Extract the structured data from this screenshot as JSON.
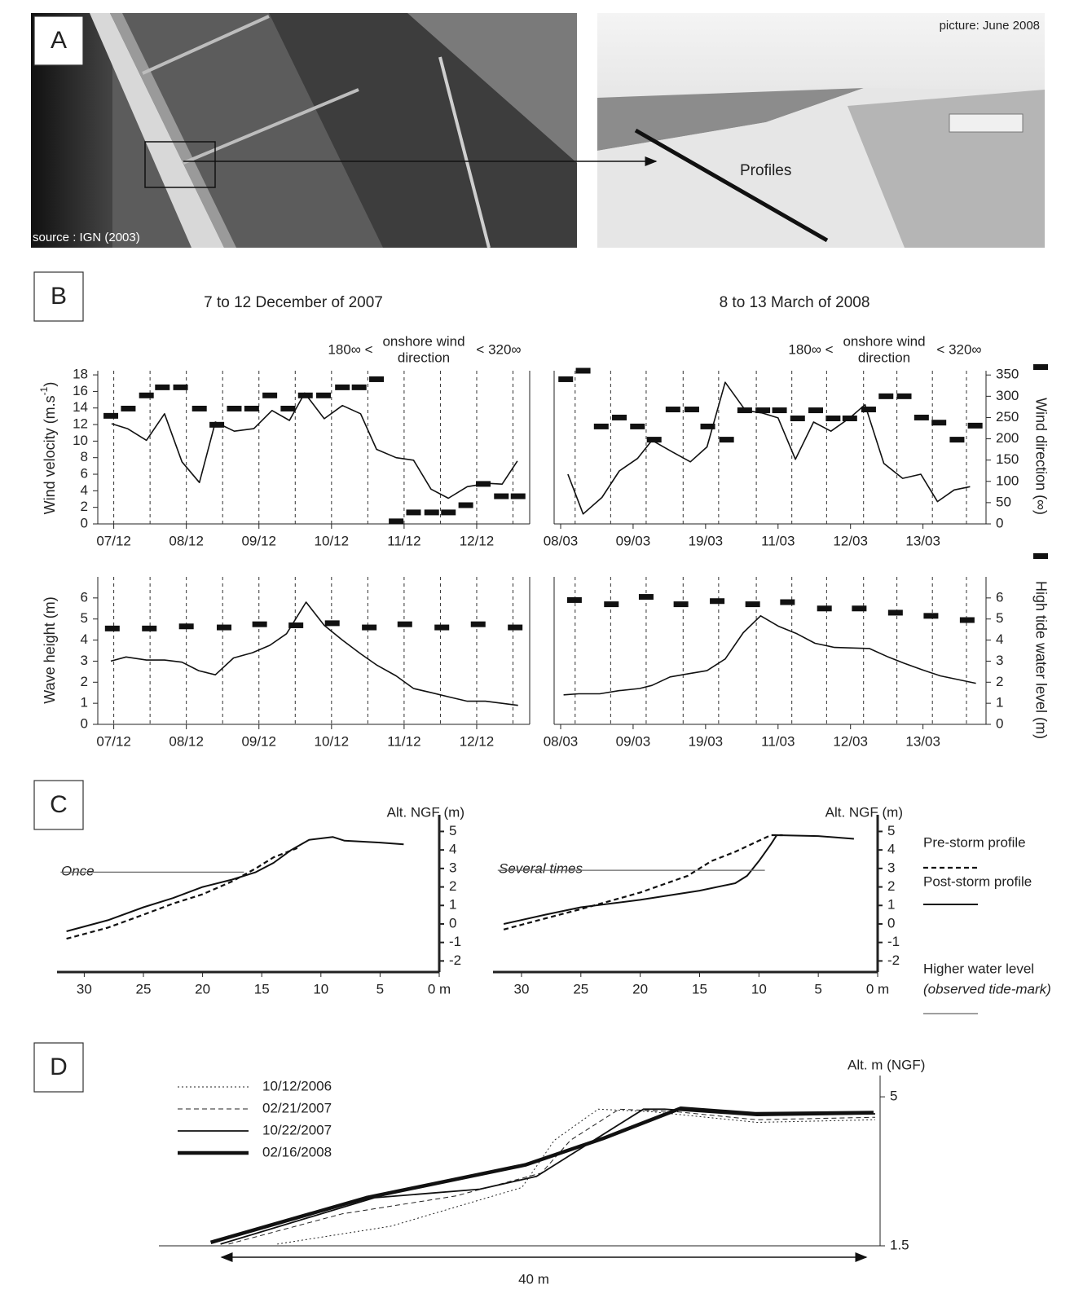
{
  "panel_labels": [
    "A",
    "B",
    "C",
    "D"
  ],
  "panel_a": {
    "source": "source : IGN (2003)",
    "picture": "picture: June 2008",
    "profiles": "Profiles"
  },
  "chart_data": [
    {
      "type": "line",
      "title": "7 to 12 December of 2007",
      "annotation": [
        "180∞ <",
        "onshore wind",
        "direction",
        "< 320∞"
      ],
      "ylabel": "Wind velocity (m.s",
      "ylabel_sup": "-1",
      "ylabel_end": ")",
      "xlim": [
        -0.22,
        5.73
      ],
      "ylim": [
        0,
        18.5
      ],
      "y2lim": [
        0,
        360
      ],
      "xticks": [
        {
          "value": 0,
          "label": "07/12"
        },
        {
          "value": 1,
          "label": "08/12"
        },
        {
          "value": 2,
          "label": "09/12"
        },
        {
          "value": 3,
          "label": "10/12"
        },
        {
          "value": 4,
          "label": "11/12"
        },
        {
          "value": 5,
          "label": "12/12"
        }
      ],
      "yticks": [
        0,
        2,
        4,
        6,
        8,
        10,
        12,
        14,
        16,
        18
      ],
      "dashed_gridlines": [
        0,
        0.5,
        1,
        1.5,
        2,
        2.5,
        3,
        3.5,
        4,
        4.5,
        5,
        5.5
      ],
      "series": [
        {
          "style": "line",
          "color": "#111111",
          "line_width": 1.6,
          "x": [
            -0.03,
            0.19,
            0.45,
            0.7,
            0.94,
            1.18,
            1.4,
            1.66,
            1.93,
            2.18,
            2.42,
            2.63,
            2.9,
            3.15,
            3.4,
            3.62,
            3.89,
            4.13,
            4.37,
            4.61,
            4.87,
            5.15,
            5.35,
            5.56
          ],
          "values": [
            12.1,
            11.5,
            10.1,
            13.3,
            7.5,
            5.0,
            12.3,
            11.2,
            11.5,
            13.7,
            12.5,
            15.8,
            12.7,
            14.3,
            13.3,
            9.0,
            8.0,
            7.7,
            4.2,
            3.1,
            4.5,
            4.9,
            4.8,
            7.6
          ]
        },
        {
          "style": "dash-marker",
          "axis": "y2",
          "color": "#111111",
          "x": [
            -0.04,
            0.2,
            0.45,
            0.67,
            0.92,
            1.18,
            1.42,
            1.66,
            1.9,
            2.15,
            2.4,
            2.64,
            2.89,
            3.15,
            3.38,
            3.62,
            3.89,
            4.13,
            4.38,
            4.61,
            4.85,
            5.09,
            5.34,
            5.57
          ],
          "values": [
            254,
            271,
            302,
            321,
            321,
            271,
            233,
            271,
            271,
            302,
            271,
            302,
            302,
            321,
            321,
            340,
            6,
            27,
            27,
            27,
            44,
            94,
            65,
            65
          ]
        }
      ]
    },
    {
      "type": "line",
      "title": "8 to 13 March of 2008",
      "annotation": [
        "180∞ <",
        "onshore wind",
        "direction",
        "< 320∞"
      ],
      "y2label": "Wind direction (∞)",
      "xlim": [
        -0.09,
        5.87
      ],
      "ylim": [
        0,
        18.5
      ],
      "y2lim": [
        0,
        360
      ],
      "xticks": [
        {
          "value": 0,
          "label": "08/03"
        },
        {
          "value": 1,
          "label": "09/03"
        },
        {
          "value": 2,
          "label": "19/03"
        },
        {
          "value": 3,
          "label": "11/03"
        },
        {
          "value": 4,
          "label": "12/03"
        },
        {
          "value": 5,
          "label": "13/03"
        }
      ],
      "y2ticks": [
        0,
        50,
        100,
        150,
        200,
        250,
        300,
        350
      ],
      "dashed_gridlines": [
        0.2,
        0.69,
        1.18,
        1.69,
        2.18,
        2.7,
        3.19,
        3.67,
        4.18,
        4.64,
        5.13,
        5.6
      ],
      "series": [
        {
          "style": "line",
          "color": "#111111",
          "line_width": 1.6,
          "x": [
            0.1,
            0.31,
            0.57,
            0.81,
            1.06,
            1.26,
            1.54,
            1.79,
            2.02,
            2.27,
            2.55,
            2.78,
            3.0,
            3.24,
            3.49,
            3.73,
            3.99,
            4.2,
            4.46,
            4.72,
            4.97,
            5.2,
            5.43,
            5.65
          ],
          "values": [
            6.0,
            1.2,
            3.2,
            6.4,
            7.9,
            10.1,
            8.7,
            7.5,
            9.3,
            17.1,
            13.7,
            13.4,
            12.8,
            7.8,
            12.3,
            11.2,
            12.8,
            14.4,
            7.3,
            5.5,
            6.0,
            2.7,
            4.1,
            4.5
          ]
        },
        {
          "style": "dash-marker",
          "axis": "y2",
          "color": "#111111",
          "x": [
            0.07,
            0.31,
            0.56,
            0.81,
            1.06,
            1.29,
            1.55,
            1.81,
            2.03,
            2.29,
            2.54,
            2.79,
            3.02,
            3.27,
            3.52,
            3.76,
            3.99,
            4.25,
            4.49,
            4.74,
            4.98,
            5.22,
            5.47,
            5.72
          ],
          "values": [
            340,
            360,
            229,
            250,
            229,
            198,
            269,
            269,
            229,
            198,
            267,
            267,
            267,
            248,
            267,
            248,
            248,
            269,
            300,
            300,
            250,
            238,
            198,
            231
          ]
        }
      ]
    },
    {
      "type": "line",
      "ylabel": "Wave height (m)",
      "xlim": [
        -0.22,
        5.73
      ],
      "ylim": [
        0,
        7
      ],
      "y2lim": [
        0,
        7
      ],
      "xticks": [
        {
          "value": 0,
          "label": "07/12"
        },
        {
          "value": 1,
          "label": "08/12"
        },
        {
          "value": 2,
          "label": "09/12"
        },
        {
          "value": 3,
          "label": "10/12"
        },
        {
          "value": 4,
          "label": "11/12"
        },
        {
          "value": 5,
          "label": "12/12"
        }
      ],
      "yticks": [
        0,
        1,
        2,
        3,
        4,
        5,
        6
      ],
      "dashed_gridlines": [
        0,
        0.5,
        1,
        1.5,
        2,
        2.5,
        3,
        3.5,
        4,
        4.5,
        5,
        5.5
      ],
      "series": [
        {
          "style": "line",
          "color": "#111111",
          "line_width": 1.6,
          "x": [
            -0.04,
            0.17,
            0.45,
            0.7,
            0.94,
            1.17,
            1.4,
            1.65,
            1.91,
            2.15,
            2.38,
            2.65,
            2.9,
            3.15,
            3.4,
            3.63,
            3.89,
            4.13,
            4.38,
            4.62,
            4.87,
            5.12,
            5.57
          ],
          "values": [
            3.0,
            3.2,
            3.05,
            3.05,
            2.95,
            2.55,
            2.35,
            3.15,
            3.4,
            3.75,
            4.3,
            5.8,
            4.7,
            4.0,
            3.35,
            2.8,
            2.3,
            1.7,
            1.5,
            1.3,
            1.1,
            1.1,
            0.9
          ]
        },
        {
          "style": "dash-marker",
          "axis": "y2",
          "color": "#111111",
          "x": [
            -0.02,
            0.49,
            1.0,
            1.52,
            2.01,
            2.51,
            3.01,
            3.52,
            4.01,
            4.52,
            5.02,
            5.53
          ],
          "values": [
            4.55,
            4.55,
            4.65,
            4.6,
            4.75,
            4.7,
            4.8,
            4.6,
            4.75,
            4.6,
            4.75,
            4.6
          ]
        }
      ]
    },
    {
      "type": "line",
      "y2label": "High tide water level (m)",
      "xlim": [
        -0.09,
        5.87
      ],
      "ylim": [
        0,
        7
      ],
      "y2lim": [
        0,
        7
      ],
      "xticks": [
        {
          "value": 0,
          "label": "08/03"
        },
        {
          "value": 1,
          "label": "09/03"
        },
        {
          "value": 2,
          "label": "19/03"
        },
        {
          "value": 3,
          "label": "11/03"
        },
        {
          "value": 4,
          "label": "12/03"
        },
        {
          "value": 5,
          "label": "13/03"
        }
      ],
      "y2ticks": [
        0,
        1,
        2,
        3,
        4,
        5,
        6
      ],
      "dashed_gridlines": [
        0.2,
        0.69,
        1.18,
        1.69,
        2.18,
        2.7,
        3.19,
        3.67,
        4.18,
        4.64,
        5.13,
        5.6
      ],
      "series": [
        {
          "style": "line",
          "color": "#111111",
          "line_width": 1.6,
          "x": [
            0.04,
            0.25,
            0.54,
            0.81,
            1.09,
            1.26,
            1.51,
            1.76,
            2.02,
            2.27,
            2.52,
            2.76,
            3.01,
            3.26,
            3.51,
            3.78,
            4.26,
            4.52,
            4.74,
            4.98,
            5.24,
            5.73
          ],
          "values": [
            1.4,
            1.45,
            1.45,
            1.6,
            1.7,
            1.85,
            2.25,
            2.4,
            2.55,
            3.1,
            4.35,
            5.15,
            4.65,
            4.3,
            3.85,
            3.65,
            3.6,
            3.2,
            2.9,
            2.6,
            2.3,
            1.95
          ]
        },
        {
          "style": "dash-marker",
          "axis": "y2",
          "color": "#111111",
          "x": [
            0.19,
            0.7,
            1.18,
            1.66,
            2.16,
            2.65,
            3.13,
            3.64,
            4.12,
            4.62,
            5.11,
            5.61
          ],
          "values": [
            5.9,
            5.7,
            6.05,
            5.7,
            5.85,
            5.7,
            5.8,
            5.5,
            5.5,
            5.3,
            5.15,
            4.95
          ]
        }
      ]
    },
    {
      "type": "line",
      "ylabel": "Alt. NGF (m)",
      "annotation": [
        "Once"
      ],
      "xlim": [
        32.3,
        0
      ],
      "ylim": [
        -2.6,
        5.9
      ],
      "xticks": [
        30,
        25,
        20,
        15,
        10,
        5,
        {
          "value": 0,
          "label": "0 m"
        }
      ],
      "yticks": [
        5,
        4,
        3,
        2,
        1,
        0,
        -1,
        -2
      ],
      "legend_note": "(observed tide-mark)",
      "series": [
        {
          "name": "Pre-storm profile",
          "style": "line",
          "dash": "dashed",
          "color": "#111111",
          "line_width": 2.2,
          "x": [
            31.5,
            28,
            25,
            22.5,
            20,
            17.5,
            15.5,
            14,
            12
          ],
          "values": [
            -0.8,
            -0.2,
            0.5,
            1.1,
            1.6,
            2.3,
            3.0,
            3.6,
            4.1
          ]
        },
        {
          "name": "Post-storm profile",
          "style": "line",
          "color": "#111111",
          "line_width": 2,
          "x": [
            31.5,
            28,
            25,
            22.5,
            20,
            17.5,
            15.5,
            14,
            12.5,
            11,
            9,
            8,
            5,
            3
          ],
          "values": [
            -0.4,
            0.2,
            0.9,
            1.4,
            2.0,
            2.4,
            2.8,
            3.3,
            4.0,
            4.55,
            4.7,
            4.5,
            4.4,
            4.3
          ]
        },
        {
          "name": "Higher water level",
          "style": "line",
          "color": "#666666",
          "line_width": 1.2,
          "x": [
            32,
            16.5
          ],
          "values": [
            2.8,
            2.8
          ]
        }
      ]
    },
    {
      "type": "line",
      "ylabel": "Alt. NGF (m)",
      "annotation": [
        "Several times"
      ],
      "xlim": [
        32.4,
        0
      ],
      "ylim": [
        -2.6,
        5.9
      ],
      "xticks": [
        30,
        25,
        20,
        15,
        10,
        5,
        {
          "value": 0,
          "label": "0 m"
        }
      ],
      "yticks": [
        5,
        4,
        3,
        2,
        1,
        0,
        -1,
        -2
      ],
      "series": [
        {
          "style": "line",
          "dash": "dashed",
          "color": "#111111",
          "line_width": 2.2,
          "x": [
            31.5,
            28,
            25,
            20,
            16,
            14,
            12,
            10,
            9,
            8
          ],
          "values": [
            -0.3,
            0.3,
            0.8,
            1.7,
            2.6,
            3.4,
            3.9,
            4.5,
            4.8,
            4.8
          ]
        },
        {
          "style": "line",
          "color": "#111111",
          "line_width": 2,
          "x": [
            31.5,
            28,
            25,
            20,
            15,
            12,
            11,
            10,
            9,
            8.5,
            5,
            2
          ],
          "values": [
            0.0,
            0.5,
            0.9,
            1.3,
            1.8,
            2.2,
            2.6,
            3.4,
            4.3,
            4.8,
            4.75,
            4.6
          ]
        },
        {
          "style": "line",
          "color": "#666666",
          "line_width": 1.2,
          "x": [
            32,
            9.5
          ],
          "values": [
            2.9,
            2.9
          ]
        }
      ]
    },
    {
      "type": "line",
      "ylabel": "Alt. m (NGF)",
      "annotation": [
        "40 m"
      ],
      "xlim": [
        0,
        44.5
      ],
      "ylim": [
        1.5,
        5.5
      ],
      "yticks": [
        5,
        1.5
      ],
      "series": [
        {
          "name": "10/12/2006",
          "style": "line",
          "dash": "dotted",
          "color": "#222222",
          "line_width": 1,
          "x": [
            7.3,
            14.3,
            22.4,
            24.4,
            27.1,
            30.4,
            36.9,
            44.2
          ],
          "values": [
            1.54,
            1.96,
            2.87,
            3.98,
            4.71,
            4.65,
            4.4,
            4.46
          ]
        },
        {
          "name": "02/21/2007",
          "style": "line",
          "dash": "dashed",
          "color": "#222222",
          "line_width": 1,
          "x": [
            4.3,
            11.3,
            18.3,
            23.6,
            25.4,
            28.4,
            31.9,
            36.9,
            44.2
          ],
          "values": [
            1.54,
            2.25,
            2.67,
            3.21,
            3.98,
            4.71,
            4.65,
            4.46,
            4.52
          ]
        },
        {
          "name": "10/22/2007",
          "style": "line",
          "color": "#111111",
          "line_width": 1.8,
          "x": [
            3.8,
            13.3,
            19.8,
            23.3,
            26.3,
            29.9,
            31.2,
            36.9,
            44.2
          ],
          "values": [
            1.54,
            2.63,
            2.83,
            3.13,
            3.85,
            4.71,
            4.71,
            4.56,
            4.6
          ]
        },
        {
          "name": "02/16/2008",
          "style": "line",
          "color": "#111111",
          "line_width": 4.5,
          "x": [
            3.2,
            12.8,
            22.6,
            27.4,
            32.2,
            36.8,
            44.1
          ],
          "values": [
            1.58,
            2.63,
            3.4,
            4.02,
            4.73,
            4.6,
            4.63
          ]
        }
      ]
    }
  ]
}
